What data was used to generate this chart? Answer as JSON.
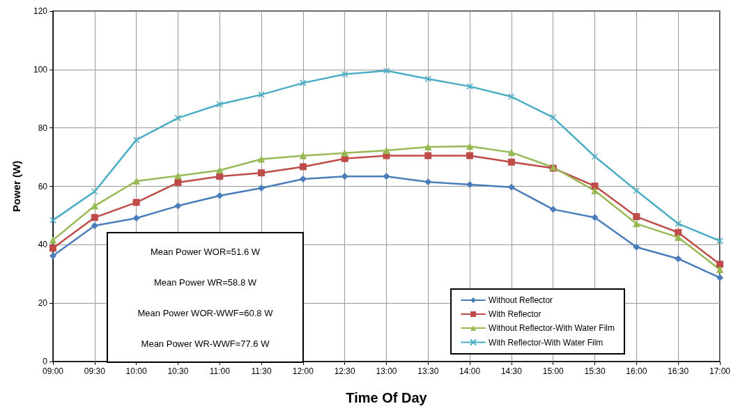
{
  "chart_data": {
    "type": "line",
    "xlabel": "Time Of Day",
    "ylabel": "Power (W)",
    "categories": [
      "09:00",
      "09:30",
      "10:00",
      "10:30",
      "11:00",
      "11:30",
      "12:00",
      "12:30",
      "13:00",
      "13:30",
      "14:00",
      "14:30",
      "15:00",
      "15:30",
      "16:00",
      "16:30",
      "17:00"
    ],
    "series": [
      {
        "name": "Without Reflector",
        "color": "#4a7ebb",
        "marker": "diamond",
        "values": [
          36.2,
          46.5,
          49.1,
          53.3,
          56.8,
          59.4,
          62.5,
          63.4,
          63.4,
          61.5,
          60.6,
          59.7,
          52.1,
          49.3,
          39.2,
          35.2,
          28.7
        ]
      },
      {
        "name": "With Reflector",
        "color": "#be4b48",
        "marker": "square",
        "values": [
          38.8,
          49.3,
          54.5,
          61.3,
          63.4,
          64.6,
          66.7,
          69.5,
          70.5,
          70.5,
          70.5,
          68.3,
          66.2,
          60.1,
          49.6,
          44.2,
          33.3
        ]
      },
      {
        "name": "Without Reflector-With Water Film",
        "color": "#98b954",
        "marker": "triangle",
        "values": [
          41.6,
          53.3,
          61.8,
          63.6,
          65.5,
          69.3,
          70.5,
          71.4,
          72.3,
          73.5,
          73.7,
          71.6,
          66.5,
          58.5,
          47.2,
          42.5,
          31.5
        ]
      },
      {
        "name": "With Reflector-With Water Film",
        "color": "#4bacc6",
        "marker": "cross",
        "values": [
          48.4,
          58.2,
          75.9,
          83.4,
          88.1,
          91.4,
          95.4,
          98.4,
          99.6,
          96.8,
          94.2,
          90.7,
          83.6,
          70.2,
          58.5,
          47.2,
          41.3
        ]
      }
    ],
    "ylim": [
      0,
      120
    ],
    "yticks": [
      0,
      20,
      40,
      60,
      80,
      100,
      120
    ],
    "grid": true,
    "legend": "bottom right",
    "annotations": [
      "Mean Power WOR=51.6 W",
      "Mean Power WR=58.8 W",
      "Mean Power WOR-WWF=60.8 W",
      "Mean Power WR-WWF=77.6 W"
    ]
  }
}
